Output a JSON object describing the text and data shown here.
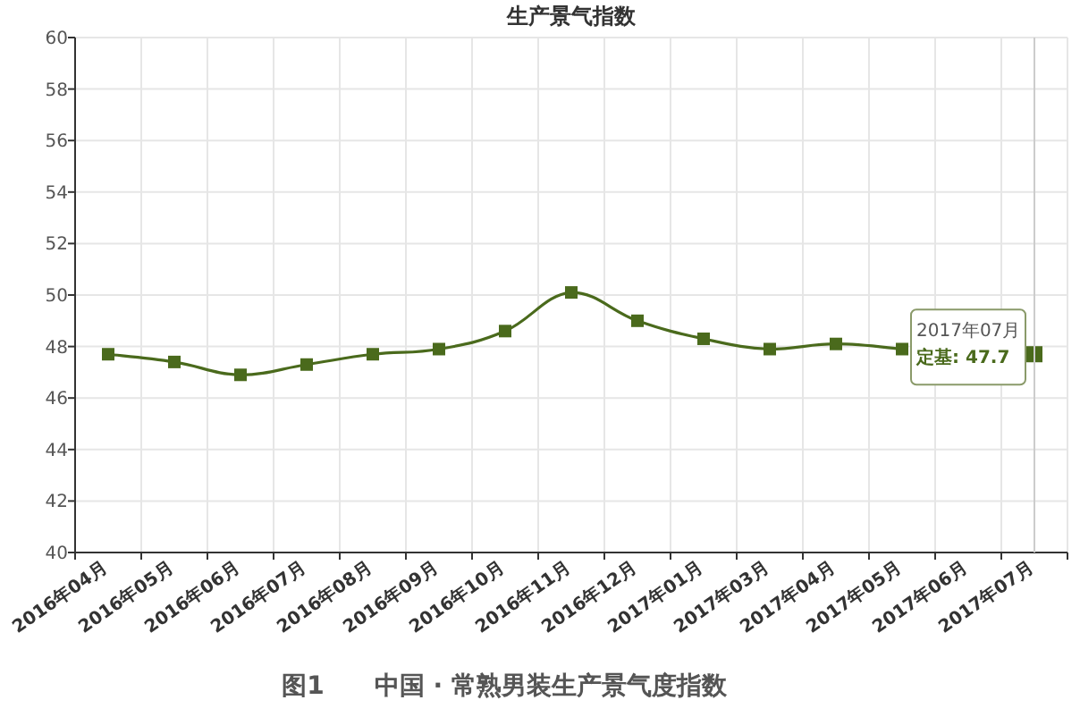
{
  "chart_data": {
    "type": "line",
    "title": "生产景气指数",
    "categories": [
      "2016年04月",
      "2016年05月",
      "2016年06月",
      "2016年07月",
      "2016年08月",
      "2016年09月",
      "2016年10月",
      "2016年11月",
      "2016年12月",
      "2017年01月",
      "2017年03月",
      "2017年04月",
      "2017年05月",
      "2017年06月",
      "2017年07月"
    ],
    "series": [
      {
        "color": "#4a6a1c",
        "values": [
          47.7,
          47.4,
          46.9,
          47.3,
          47.7,
          47.9,
          48.6,
          50.1,
          49.0,
          48.3,
          47.9,
          48.1,
          47.9,
          null,
          47.7
        ]
      }
    ],
    "ylim": [
      40,
      60
    ],
    "yticks": [
      40,
      42,
      44,
      46,
      48,
      50,
      52,
      54,
      56,
      58,
      60
    ],
    "ref_lines": [
      {
        "axis": "x",
        "value": "2017年07月",
        "color": "#cccccc"
      }
    ],
    "grid": true,
    "marker": "square",
    "line_style": "solid",
    "annotations": [
      {
        "text": "2017年07月定基: 47.7",
        "x": "2017年07月",
        "y": 47.7
      },
      "图1　　中国 · 常熟男装生产景气度指数"
    ]
  }
}
